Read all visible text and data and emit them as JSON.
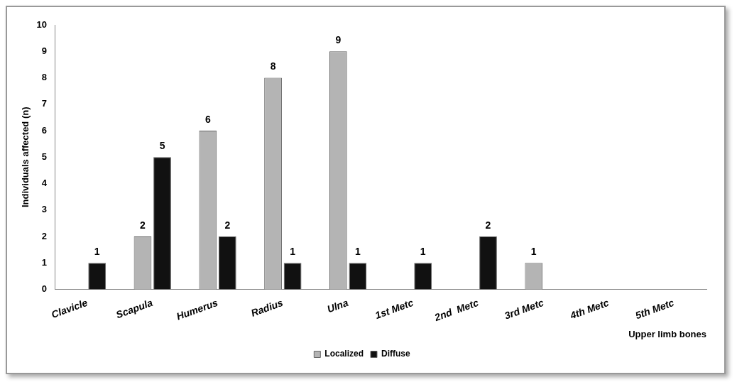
{
  "chart_data": {
    "type": "bar",
    "xlabel": "Upper limb bones",
    "ylabel": "Individuals affected (n)",
    "categories": [
      "Clavicle",
      "Scapula",
      "Humerus",
      "Radius",
      "Ulna",
      "1st Metc",
      "2nd  Metc",
      "3rd Metc",
      "4th Metc",
      "5th Metc"
    ],
    "series": [
      {
        "name": "Localized",
        "color": "#b4b4b4",
        "values": [
          null,
          2,
          6,
          8,
          9,
          null,
          null,
          1,
          null,
          null
        ]
      },
      {
        "name": "Diffuse",
        "color": "#111111",
        "values": [
          1,
          5,
          2,
          1,
          1,
          1,
          2,
          null,
          null,
          null
        ]
      }
    ],
    "ylim": [
      0,
      10
    ],
    "yticks": [
      0,
      1,
      2,
      3,
      4,
      5,
      6,
      7,
      8,
      9,
      10
    ],
    "grid": false,
    "legend": "bottom",
    "data_labels": true
  }
}
